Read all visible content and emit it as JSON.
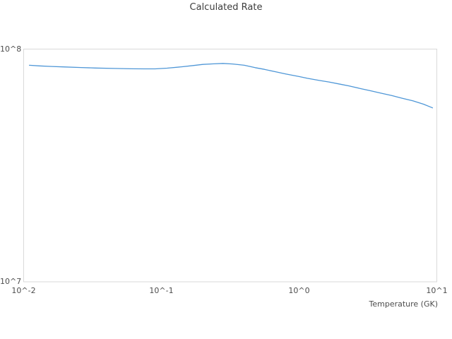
{
  "colors": {
    "line": "#4f97d7",
    "plot_border": "#d9d9d9",
    "title_text": "#3d3d3d",
    "tick_text": "#4d4d4d",
    "background": "#ffffff"
  },
  "chart_data": {
    "type": "line",
    "title": "Calculated Rate",
    "xlabel": "Temperature (GK)",
    "ylabel": "",
    "x_scale": "log",
    "y_scale": "log",
    "xlim": [
      0.01,
      10
    ],
    "ylim": [
      10000000,
      100000000
    ],
    "grid": false,
    "legend": false,
    "x_ticks": [
      {
        "value": 0.01,
        "label": "10^-2"
      },
      {
        "value": 0.1,
        "label": "10^-1"
      },
      {
        "value": 1,
        "label": "10^0"
      },
      {
        "value": 10,
        "label": "10^1"
      }
    ],
    "y_ticks": [
      {
        "value": 10000000,
        "label": "10^7"
      },
      {
        "value": 100000000,
        "label": "10^8"
      }
    ],
    "series": [
      {
        "name": "Calculated Rate",
        "x": [
          0.011,
          0.013,
          0.016,
          0.02,
          0.026,
          0.033,
          0.045,
          0.06,
          0.075,
          0.09,
          0.11,
          0.14,
          0.17,
          0.2,
          0.24,
          0.28,
          0.33,
          0.4,
          0.48,
          0.56,
          0.68,
          0.8,
          1.0,
          1.15,
          1.4,
          1.65,
          2.0,
          2.3,
          2.8,
          3.3,
          4.0,
          4.7,
          5.6,
          6.7,
          8.0,
          9.3
        ],
        "y": [
          85200000,
          84700000,
          84200000,
          83800000,
          83300000,
          82900000,
          82600000,
          82300000,
          82200000,
          82200000,
          82800000,
          83900000,
          85000000,
          85900000,
          86400000,
          86800000,
          86300000,
          85200000,
          83200000,
          81800000,
          79800000,
          78200000,
          76200000,
          74900000,
          73300000,
          72200000,
          70600000,
          69500000,
          67600000,
          66200000,
          64500000,
          63200000,
          61500000,
          59900000,
          58000000,
          55900000
        ]
      }
    ]
  }
}
